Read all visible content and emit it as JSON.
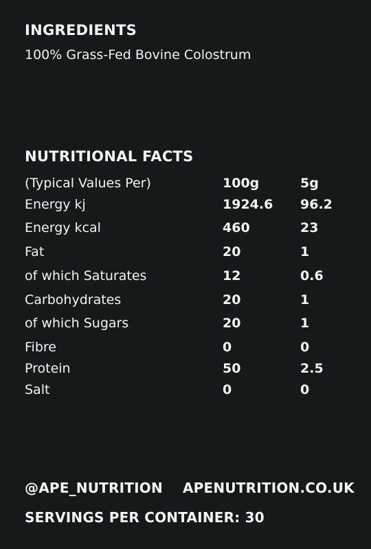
{
  "ingredients": {
    "heading": "INGREDIENTS",
    "text": "100%  Grass-Fed Bovine Colostrum"
  },
  "nutrition": {
    "heading": "NUTRITIONAL FACTS",
    "header_row": {
      "label": "(Typical Values Per)",
      "per_100g": "100g",
      "per_serving": "5g"
    },
    "rows": [
      {
        "label": "Energy kj",
        "per_100g": "1924.6",
        "per_serving": "96.2"
      },
      {
        "label": "Energy kcal",
        "per_100g": "460",
        "per_serving": "23"
      },
      {
        "label": "Fat",
        "per_100g": "20",
        "per_serving": "1"
      },
      {
        "label": "of which Saturates",
        "per_100g": "12",
        "per_serving": "0.6"
      },
      {
        "label": "Carbohydrates",
        "per_100g": "20",
        "per_serving": "1"
      },
      {
        "label": "of which Sugars",
        "per_100g": "20",
        "per_serving": "1"
      },
      {
        "label": "Fibre",
        "per_100g": "0",
        "per_serving": "0"
      },
      {
        "label": "Protein",
        "per_100g": "50",
        "per_serving": "2.5"
      },
      {
        "label": "Salt",
        "per_100g": "0",
        "per_serving": "0"
      }
    ]
  },
  "footer": {
    "social_handle": "@APE_NUTRITION",
    "website": "APENUTRITION.CO.UK",
    "servings": "SERVINGS PER CONTAINER: 30"
  },
  "colors": {
    "background": "#141a1b",
    "text": "#f4f4f2"
  }
}
